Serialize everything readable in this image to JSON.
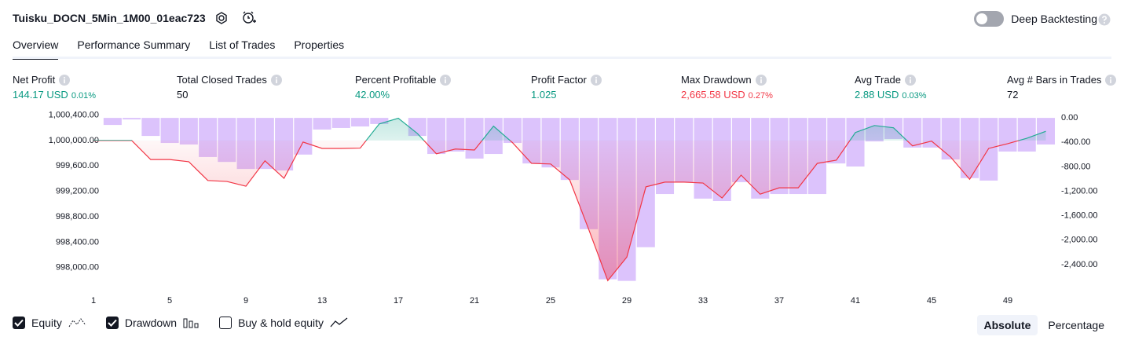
{
  "header": {
    "title": "Tuisku_DOCN_5Min_1M00_01eac723",
    "deep_backtesting": "Deep Backtesting",
    "deep_backtesting_on": false
  },
  "tabs": [
    "Overview",
    "Performance Summary",
    "List of Trades",
    "Properties"
  ],
  "active_tab": 0,
  "metrics": [
    {
      "label": "Net Profit",
      "value": "144.17 USD",
      "percent": "0.01%",
      "tone": "up"
    },
    {
      "label": "Total Closed Trades",
      "value": "50",
      "tone": "plain"
    },
    {
      "label": "Percent Profitable",
      "value": "42.00%",
      "tone": "up"
    },
    {
      "label": "Profit Factor",
      "value": "1.025",
      "tone": "up"
    },
    {
      "label": "Max Drawdown",
      "value": "2,665.58 USD",
      "percent": "0.27%",
      "tone": "down"
    },
    {
      "label": "Avg Trade",
      "value": "2.88 USD",
      "percent": "0.03%",
      "tone": "up"
    },
    {
      "label": "Avg # Bars in Trades",
      "value": "72",
      "tone": "plain"
    }
  ],
  "chart_data": {
    "type": "line",
    "x": [
      1,
      2,
      3,
      4,
      5,
      6,
      7,
      8,
      9,
      10,
      11,
      12,
      13,
      14,
      15,
      16,
      17,
      18,
      19,
      20,
      21,
      22,
      23,
      24,
      25,
      26,
      27,
      28,
      29,
      30,
      31,
      32,
      33,
      34,
      35,
      36,
      37,
      38,
      39,
      40,
      41,
      42,
      43,
      44,
      45,
      46,
      47,
      48,
      49,
      50,
      51
    ],
    "series": [
      {
        "type": "line",
        "color_up": "#22ab94",
        "color_down": "#f23645",
        "values": [
          1000000,
          1000000,
          1000000,
          999700,
          999700,
          999665,
          999370,
          999355,
          999280,
          999680,
          999405,
          999975,
          999875,
          999875,
          999880,
          1000260,
          1000350,
          1000110,
          999790,
          999865,
          999850,
          1000225,
          999965,
          999640,
          999630,
          999380,
          998600,
          997795,
          998165,
          999270,
          999345,
          999345,
          999330,
          999095,
          999455,
          999155,
          999255,
          999255,
          999640,
          999690,
          1000125,
          1000235,
          1000200,
          999915,
          999990,
          999740,
          999390,
          999875,
          999950,
          1000035,
          1000144.17
        ]
      },
      {
        "type": "bar",
        "axis": "y2",
        "color": "#d6b8fc",
        "values": [
          0,
          -115,
          -25,
          -295,
          -410,
          -435,
          -640,
          -720,
          -835,
          -835,
          -860,
          -600,
          -190,
          -165,
          -140,
          -100,
          0,
          -295,
          -590,
          -550,
          -665,
          -590,
          -410,
          -745,
          -810,
          -1015,
          -1820,
          -2640,
          -2665.58,
          -2115,
          -1245,
          -1050,
          -1320,
          -1360,
          -1050,
          -1320,
          -1245,
          -1245,
          -1245,
          -745,
          -795,
          -385,
          -345,
          -485,
          -485,
          -680,
          -985,
          -1025,
          -550,
          -550,
          -435
        ]
      }
    ],
    "xlim": [
      0.5,
      51.5
    ],
    "xticks": [
      1,
      5,
      9,
      13,
      17,
      21,
      25,
      29,
      33,
      37,
      41,
      45,
      49
    ],
    "ylim": [
      997700,
      1000480
    ],
    "yticks": [
      {
        "value": 1000400,
        "label": "1,000,400.00"
      },
      {
        "value": 1000000,
        "label": "1,000,000.00"
      },
      {
        "value": 999600,
        "label": "999,600.00"
      },
      {
        "value": 999200,
        "label": "999,200.00"
      },
      {
        "value": 998800,
        "label": "998,800.00"
      },
      {
        "value": 998400,
        "label": "998,400.00"
      },
      {
        "value": 998000,
        "label": "998,000.00"
      }
    ],
    "y2lim": [
      -2760,
      130
    ],
    "y2ticks": [
      {
        "value": 0,
        "label": "0.00"
      },
      {
        "value": -400,
        "label": "-400.00"
      },
      {
        "value": -800,
        "label": "-800.00"
      },
      {
        "value": -1200,
        "label": "-1,200.00"
      },
      {
        "value": -1600,
        "label": "-1,600.00"
      },
      {
        "value": -2000,
        "label": "-2,000.00"
      },
      {
        "value": -2400,
        "label": "-2,400.00"
      }
    ]
  },
  "checkboxes": [
    {
      "label": "Equity",
      "checked": true
    },
    {
      "label": "Drawdown",
      "checked": true
    },
    {
      "label": "Buy & hold equity",
      "checked": false
    }
  ],
  "modes": [
    "Absolute",
    "Percentage"
  ],
  "active_mode": 0
}
